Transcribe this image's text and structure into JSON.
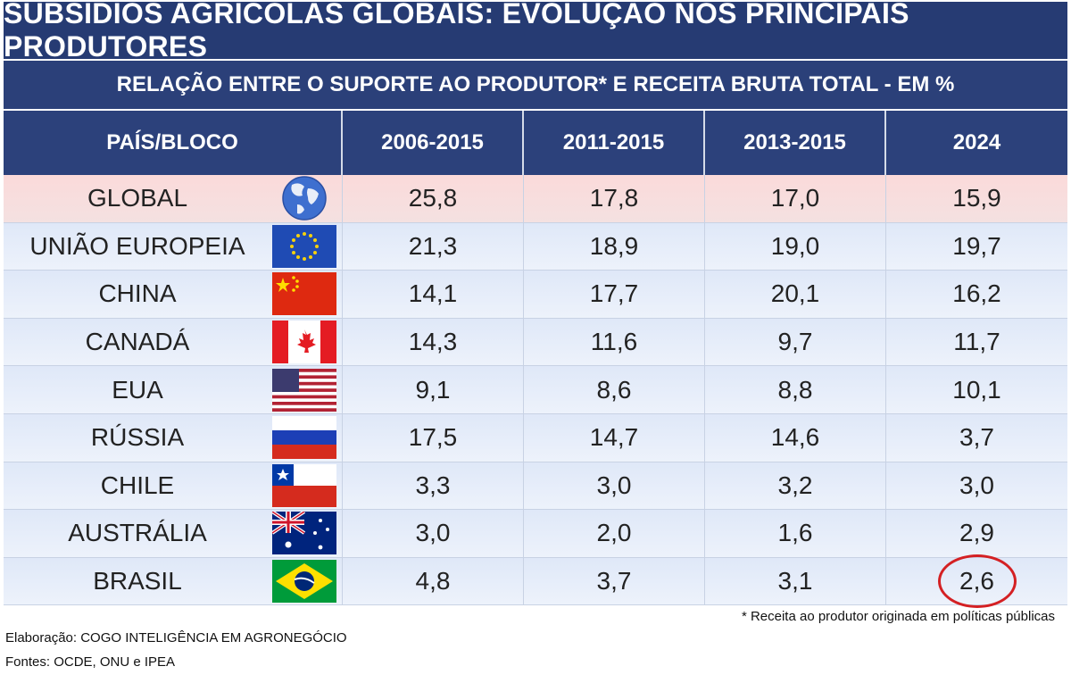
{
  "title": "SUBSÍDIOS AGRÍCOLAS GLOBAIS: EVOLUÇÃO NOS PRINCIPAIS PRODUTORES",
  "subtitle": "RELAÇÃO ENTRE O SUPORTE AO PRODUTOR* E RECEITA BRUTA TOTAL - EM %",
  "footnote": "* Receita ao produtor originada em políticas públicas",
  "credit": "Elaboração: COGO INTELIGÊNCIA EM AGRONEGÓCIO",
  "sources": "Fontes: OCDE, ONU e IPEA",
  "colors": {
    "header_bg": "#263b73",
    "global_row": "#fbdada",
    "normal_row": "#dfe8f8",
    "highlight_ring": "#d42023"
  },
  "chart_data": {
    "type": "table",
    "columns": [
      "PAÍS/BLOCO",
      "2006-2015",
      "2011-2015",
      "2013-2015",
      "2024"
    ],
    "rows": [
      {
        "name": "GLOBAL",
        "flag": "globe-icon",
        "values": [
          "25,8",
          "17,8",
          "17,0",
          "15,9"
        ]
      },
      {
        "name": "UNIÃO EUROPEIA",
        "flag": "eu-flag-icon",
        "values": [
          "21,3",
          "18,9",
          "19,0",
          "19,7"
        ]
      },
      {
        "name": "CHINA",
        "flag": "china-flag-icon",
        "values": [
          "14,1",
          "17,7",
          "20,1",
          "16,2"
        ]
      },
      {
        "name": "CANADÁ",
        "flag": "canada-flag-icon",
        "values": [
          "14,3",
          "11,6",
          "9,7",
          "11,7"
        ]
      },
      {
        "name": "EUA",
        "flag": "usa-flag-icon",
        "values": [
          "9,1",
          "8,6",
          "8,8",
          "10,1"
        ]
      },
      {
        "name": "RÚSSIA",
        "flag": "russia-flag-icon",
        "values": [
          "17,5",
          "14,7",
          "14,6",
          "3,7"
        ]
      },
      {
        "name": "CHILE",
        "flag": "chile-flag-icon",
        "values": [
          "3,3",
          "3,0",
          "3,2",
          "3,0"
        ]
      },
      {
        "name": "AUSTRÁLIA",
        "flag": "australia-flag-icon",
        "values": [
          "3,0",
          "2,0",
          "1,6",
          "2,9"
        ]
      },
      {
        "name": "BRASIL",
        "flag": "brazil-flag-icon",
        "values": [
          "4,8",
          "3,7",
          "3,1",
          "2,6"
        ],
        "highlight_last": true
      }
    ]
  }
}
